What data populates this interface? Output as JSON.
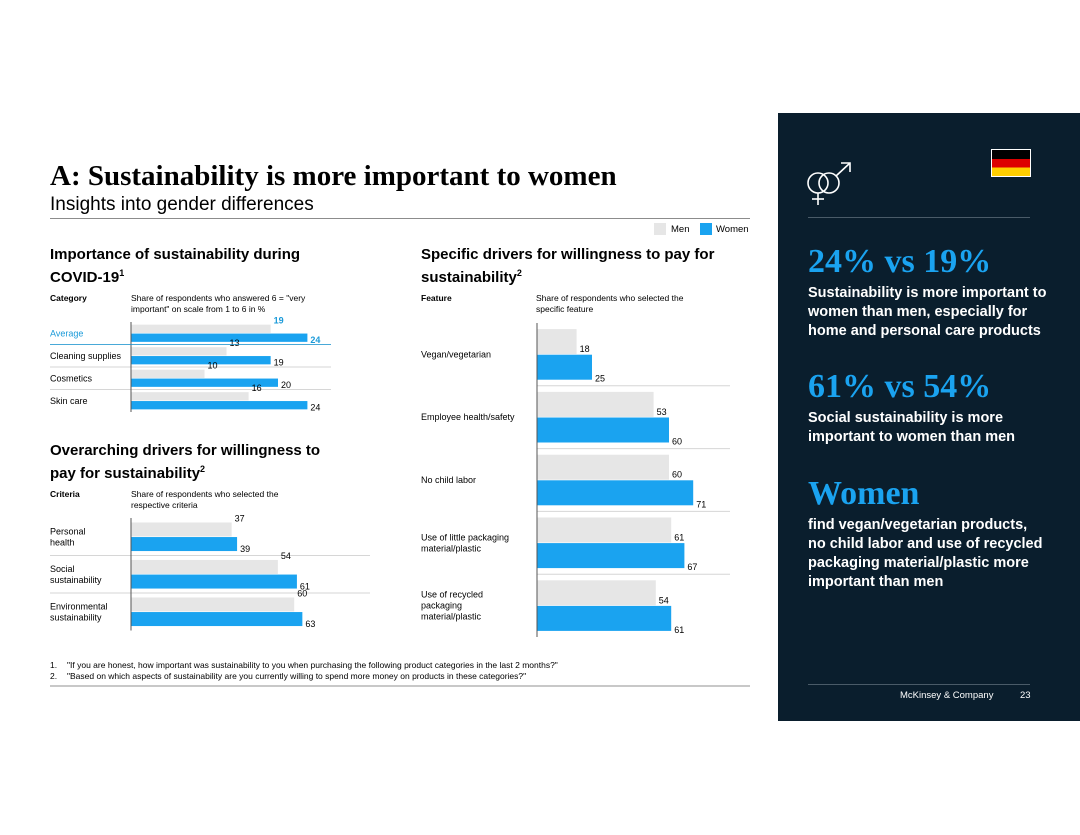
{
  "title": "A: Sustainability is more important to women",
  "subtitle": "Insights into gender differences",
  "legend": {
    "men": "Men",
    "women": "Women"
  },
  "colors": {
    "men": "#e6e6e6",
    "women": "#1aa3f0",
    "highlight": "#1a9ad9",
    "panel_bg": "#0a1e2d"
  },
  "chart_data": [
    {
      "type": "bar",
      "title": "Importance of sustainability during COVID-19",
      "title_main": "Importance of sustainability during COVID-19",
      "footnote_ref": "1",
      "category_header": "Category",
      "value_header": "Share of respondents who answered 6 = \"very important\" on scale from 1 to 6 in %",
      "categories": [
        "Average",
        "Cleaning supplies",
        "Cosmetics",
        "Skin care"
      ],
      "series": [
        {
          "name": "Men",
          "values": [
            19,
            13,
            10,
            16
          ]
        },
        {
          "name": "Women",
          "values": [
            24,
            19,
            20,
            24
          ]
        }
      ],
      "highlight_category": "Average"
    },
    {
      "type": "bar",
      "title": "Overarching drivers for willingness to pay for sustainability",
      "title_main": "Overarching drivers for willingness to pay for sustainability",
      "footnote_ref": "2",
      "category_header": "Criteria",
      "value_header": "Share of respondents who selected the respective criteria",
      "categories": [
        "Personal health",
        "Social sustainability",
        "Environmental sustainability"
      ],
      "series": [
        {
          "name": "Men",
          "values": [
            37,
            54,
            60
          ]
        },
        {
          "name": "Women",
          "values": [
            39,
            61,
            63
          ]
        }
      ]
    },
    {
      "type": "bar",
      "title": "Specific drivers for willingness to pay for sustainability",
      "title_main": "Specific drivers for willingness to pay for sustainability",
      "footnote_ref": "2",
      "category_header": "Feature",
      "value_header": "Share of respondents who selected the specific feature",
      "categories": [
        "Vegan/vegetarian",
        "Employee health/safety",
        "No child labor",
        "Use of little packaging material/plastic",
        "Use of recycled packaging material/plastic"
      ],
      "series": [
        {
          "name": "Men",
          "values": [
            18,
            53,
            60,
            61,
            54
          ]
        },
        {
          "name": "Women",
          "values": [
            25,
            60,
            71,
            67,
            61
          ]
        }
      ]
    }
  ],
  "footnotes": [
    {
      "num": "1.",
      "text": "\"If you are honest, how important was sustainability to you when purchasing the following product categories in the last 2 months?\""
    },
    {
      "num": "2.",
      "text": "\"Based on which aspects of sustainability are you currently willing to spend more money on products in these categories?\""
    }
  ],
  "panel": {
    "icon": "gender-symbols-icon",
    "flag": "germany-flag-icon",
    "stat1": "24% vs 19%",
    "text1": "Sustainability is more important to women than men, especially for home and personal care products",
    "stat2": "61% vs 54%",
    "text2": "Social sustainability is more important to women than men",
    "stat3": "Women",
    "text3": "find vegan/vegetarian products, no child labor and use of recycled packaging material/plastic more important than men",
    "brand": "McKinsey & Company",
    "page": "23"
  }
}
